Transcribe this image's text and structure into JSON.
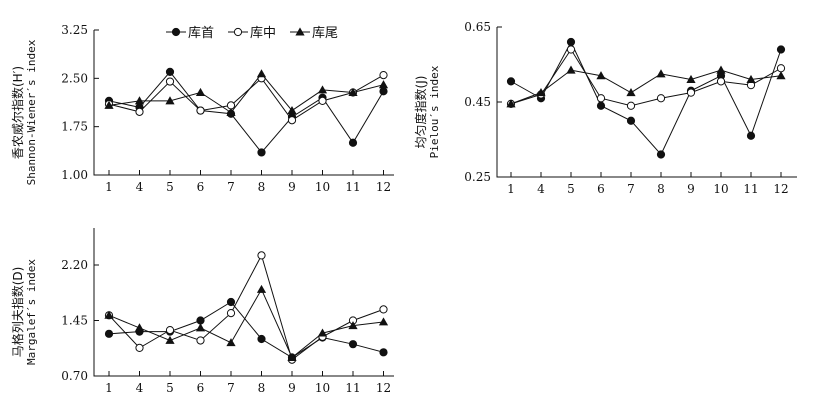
{
  "legend": [
    {
      "label": "库首",
      "marker": "filled-circle"
    },
    {
      "label": "库中",
      "marker": "open-circle"
    },
    {
      "label": "库尾",
      "marker": "filled-triangle"
    }
  ],
  "chart_data": [
    {
      "type": "line",
      "id": "shannon",
      "ylabel_cn": "香农威尔指数(H′)",
      "ylabel_en": "Shannon-Wiener′s index",
      "categories": [
        "1",
        "4",
        "5",
        "6",
        "7",
        "8",
        "9",
        "10",
        "11",
        "12"
      ],
      "ylim": [
        1.0,
        3.25
      ],
      "yticks": [
        "1.00",
        "1.75",
        "2.50",
        "3.25"
      ],
      "series": [
        {
          "name": "库首",
          "marker": "filled-circle",
          "values": [
            2.15,
            2.05,
            2.6,
            2.0,
            1.95,
            1.35,
            1.9,
            2.2,
            1.5,
            2.3
          ]
        },
        {
          "name": "库中",
          "marker": "open-circle",
          "values": [
            2.1,
            1.98,
            2.45,
            2.0,
            2.08,
            2.5,
            1.85,
            2.15,
            2.28,
            2.55
          ]
        },
        {
          "name": "库尾",
          "marker": "filled-triangle",
          "values": [
            2.08,
            2.15,
            2.15,
            2.28,
            1.97,
            2.57,
            2.0,
            2.32,
            2.28,
            2.4
          ]
        }
      ]
    },
    {
      "type": "line",
      "id": "pielou",
      "ylabel_cn": "均匀度指数(J)",
      "ylabel_en": "Pielou′s index",
      "categories": [
        "1",
        "4",
        "5",
        "6",
        "7",
        "8",
        "9",
        "10",
        "11",
        "12"
      ],
      "ylim": [
        0.25,
        0.65
      ],
      "yticks": [
        "0.25",
        "0.45",
        "0.65"
      ],
      "series": [
        {
          "name": "库首",
          "marker": "filled-circle",
          "values": [
            0.505,
            0.46,
            0.61,
            0.44,
            0.4,
            0.31,
            0.48,
            0.52,
            0.36,
            0.59
          ]
        },
        {
          "name": "库中",
          "marker": "open-circle",
          "values": [
            0.445,
            0.47,
            0.59,
            0.46,
            0.44,
            0.46,
            0.475,
            0.505,
            0.495,
            0.54
          ]
        },
        {
          "name": "库尾",
          "marker": "filled-triangle",
          "values": [
            0.445,
            0.475,
            0.535,
            0.52,
            0.475,
            0.525,
            0.51,
            0.535,
            0.51,
            0.52
          ]
        }
      ]
    },
    {
      "type": "line",
      "id": "margalef",
      "ylabel_cn": "马格列夫指数(D)",
      "ylabel_en": "Margalef′s index",
      "categories": [
        "1",
        "4",
        "5",
        "6",
        "7",
        "8",
        "9",
        "10",
        "11",
        "12"
      ],
      "ylim": [
        0.7,
        2.7
      ],
      "yticks": [
        "0.70",
        "1.45",
        "2.20"
      ],
      "series": [
        {
          "name": "库首",
          "marker": "filled-circle",
          "values": [
            1.27,
            1.3,
            1.3,
            1.45,
            1.7,
            1.2,
            0.95,
            1.22,
            1.13,
            1.02
          ]
        },
        {
          "name": "库中",
          "marker": "open-circle",
          "values": [
            1.52,
            1.08,
            1.32,
            1.18,
            1.55,
            2.33,
            0.92,
            1.23,
            1.45,
            1.6
          ]
        },
        {
          "name": "库尾",
          "marker": "filled-triangle",
          "values": [
            1.52,
            1.35,
            1.18,
            1.35,
            1.15,
            1.87,
            0.95,
            1.28,
            1.38,
            1.43
          ]
        }
      ]
    }
  ]
}
